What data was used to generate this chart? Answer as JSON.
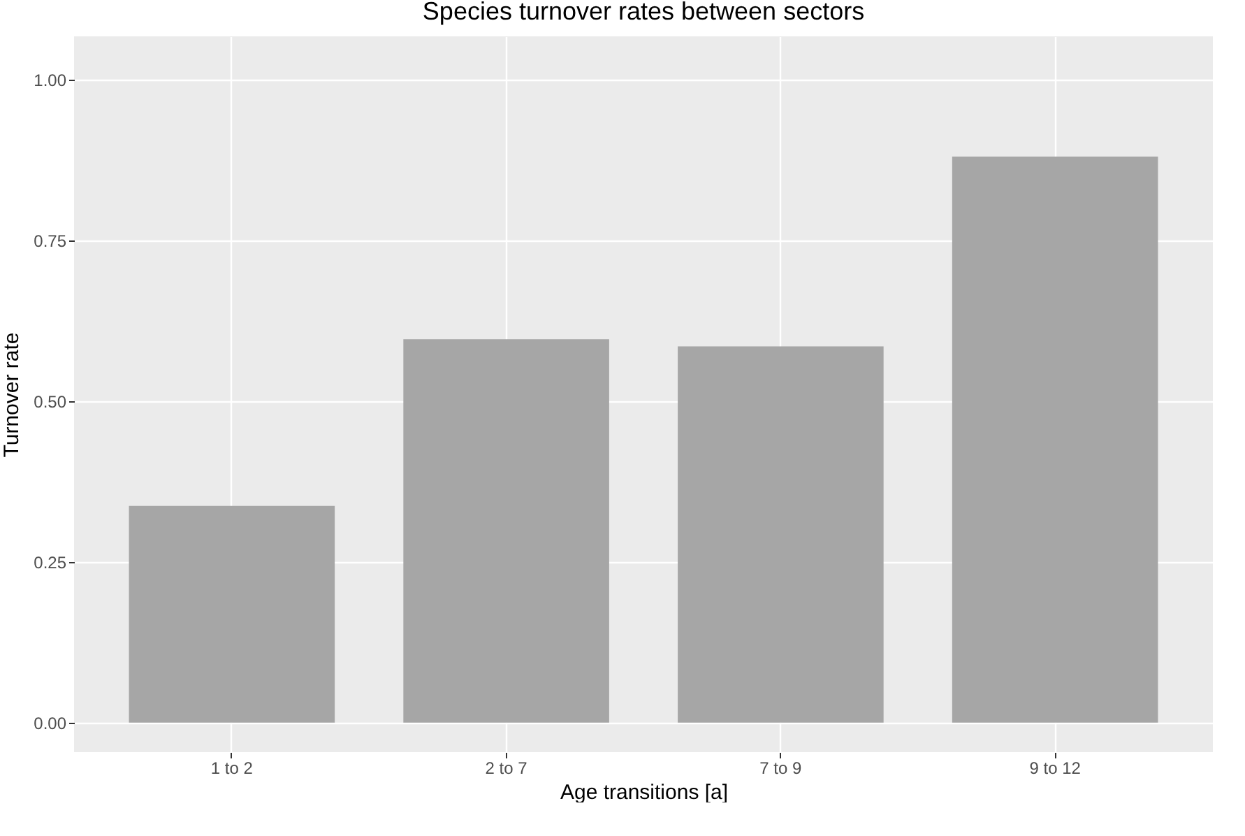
{
  "chart_data": {
    "type": "bar",
    "title": "Species turnover rates between sectors",
    "xlabel": "Age transitions [a]",
    "ylabel": "Turnover rate",
    "categories": [
      "1 to 2",
      "2 to 7",
      "7 to 9",
      "9 to 12"
    ],
    "values": [
      0.337,
      0.596,
      0.585,
      0.88
    ],
    "color": "#a6a6a6",
    "ylim": [
      -0.046,
      1.067
    ],
    "yticks": [
      {
        "value": 0,
        "label": "0.00"
      },
      {
        "value": 0.25,
        "label": "0.25"
      },
      {
        "value": 0.5,
        "label": "0.50"
      },
      {
        "value": 0.75,
        "label": "0.75"
      },
      {
        "value": 1,
        "label": "1.00"
      }
    ],
    "grid": true
  }
}
